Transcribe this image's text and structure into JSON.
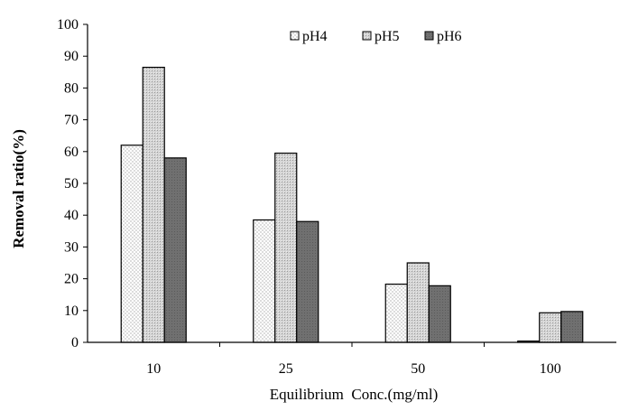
{
  "chart_data": {
    "type": "bar",
    "title": "",
    "xlabel": "Equilibrium  Conc.(mg/ml)",
    "ylabel": "Removal ratio(%)",
    "categories": [
      "10",
      "25",
      "50",
      "100"
    ],
    "series": [
      {
        "name": "pH4",
        "values": [
          62,
          38.5,
          18.3,
          0.4
        ],
        "pattern": "dots",
        "color": "#ffffff"
      },
      {
        "name": "pH5",
        "values": [
          86.5,
          59.5,
          25,
          9.3
        ],
        "pattern": "light-hatch",
        "color": "#c8c8c8"
      },
      {
        "name": "pH6",
        "values": [
          58,
          38,
          17.8,
          9.7
        ],
        "pattern": "dark-solid",
        "color": "#6f6f6f"
      }
    ],
    "ylim": [
      0,
      100
    ],
    "yticks": [
      0,
      10,
      20,
      30,
      40,
      50,
      60,
      70,
      80,
      90,
      100
    ],
    "grid": false,
    "legend_position": "top-right"
  }
}
